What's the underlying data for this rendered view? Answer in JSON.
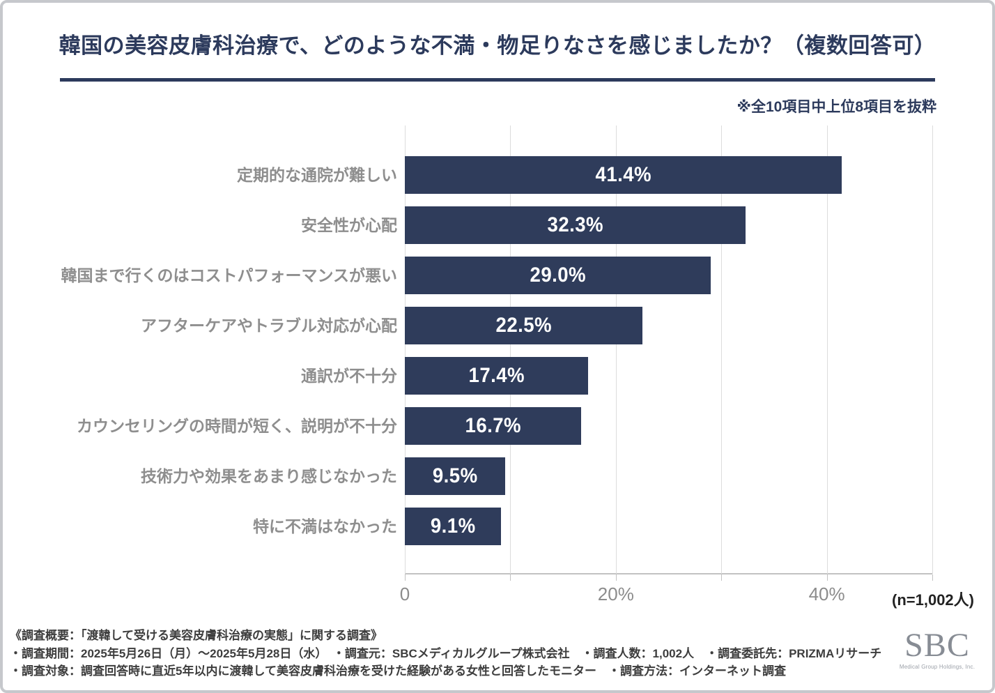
{
  "title": "韓国の美容皮膚科治療で、どのような不満・物足りなさを感じましたか？（複数回答可）",
  "note": "※全10項目中上位8項目を抜粋",
  "chart_data": {
    "type": "bar",
    "orientation": "horizontal",
    "title": "韓国の美容皮膚科治療で、どのような不満・物足りなさを感じましたか？（複数回答可）",
    "categories": [
      "定期的な通院が難しい",
      "安全性が心配",
      "韓国まで行くのはコストパフォーマンスが悪い",
      "アフターケアやトラブル対応が心配",
      "通訳が不十分",
      "カウンセリングの時間が短く、説明が不十分",
      "技術力や効果をあまり感じなかった",
      "特に不満はなかった"
    ],
    "values": [
      41.4,
      32.3,
      29.0,
      22.5,
      17.4,
      16.7,
      9.5,
      9.1
    ],
    "value_labels": [
      "41.4%",
      "32.3%",
      "29.0%",
      "22.5%",
      "17.4%",
      "16.7%",
      "9.5%",
      "9.1%"
    ],
    "xlim": [
      0,
      50
    ],
    "grid_interval": 10,
    "grid_on": true,
    "x_ticks": [
      {
        "pos": 0,
        "label": "0"
      },
      {
        "pos": 20,
        "label": "20%"
      },
      {
        "pos": 40,
        "label": "40%"
      }
    ],
    "bar_color": "#2f3c5b",
    "value_label_color": "#ffffff",
    "category_label_color": "#8e8e8e"
  },
  "sample_label": "(n=1,002人)",
  "footer": {
    "line1": "《調査概要：「渡韓して受ける美容皮膚科治療の実態」に関する調査》",
    "line2": "・調査期間：2025年5月26日（月）～2025年5月28日（水）　・調査元：SBCメディカルグループ株式会社　・調査人数：1,002人　・調査委託先：PRIZMAリサーチ",
    "line3": "・調査対象：調査回答時に直近5年以内に渡韓して美容皮膚科治療を受けた経験がある女性と回答したモニター　・調査方法：インターネット調査"
  },
  "logo": {
    "text": "SBC",
    "subtext": "Medical Group Holdings, Inc."
  },
  "colors": {
    "navy": "#2c3a5c",
    "bar": "#2f3c5b",
    "grid": "#dcdcdc",
    "axis": "#c2c2c2"
  }
}
